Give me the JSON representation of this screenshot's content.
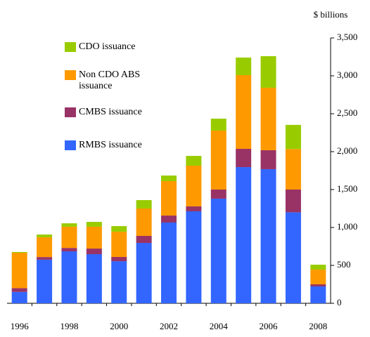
{
  "chart_data": {
    "type": "stacked_bar",
    "y_axis_label": "$ billions",
    "categories": [
      "1996",
      null,
      "1998",
      null,
      "2000",
      null,
      "2002",
      null,
      "2004",
      null,
      "2006",
      null,
      "2008"
    ],
    "series": [
      {
        "name": "RMBS issuance",
        "color": "#3366ff",
        "values": [
          150,
          575,
          685,
          648,
          555,
          796,
          1065,
          1213,
          1380,
          1796,
          1769,
          1200,
          222
        ]
      },
      {
        "name": "CMBS issuance",
        "color": "#993366",
        "values": [
          50,
          35,
          45,
          74,
          56,
          93,
          92,
          65,
          120,
          241,
          250,
          300,
          28
        ]
      },
      {
        "name": "Non CDO ABS issuance",
        "color": "#ff9900",
        "values": [
          467,
          260,
          280,
          288,
          333,
          361,
          454,
          537,
          778,
          972,
          824,
          535,
          194
        ]
      },
      {
        "name": "CDO issuance",
        "color": "#99cc00",
        "values": [
          10,
          37,
          45,
          64,
          74,
          111,
          74,
          129,
          157,
          232,
          416,
          318,
          65
        ]
      }
    ],
    "legend_order": [
      3,
      2,
      1,
      0
    ],
    "ylim": [
      0,
      3500
    ],
    "yticks": [
      0,
      500,
      {
        "value": 1000,
        "label": "1,000"
      },
      {
        "value": 1500,
        "label": "1,500"
      },
      {
        "value": 2000,
        "label": "2,000"
      },
      {
        "value": 2500,
        "label": "2,500"
      },
      {
        "value": 3000,
        "label": "3,000"
      },
      {
        "value": 3500,
        "label": "3,500"
      }
    ],
    "grid": false
  }
}
